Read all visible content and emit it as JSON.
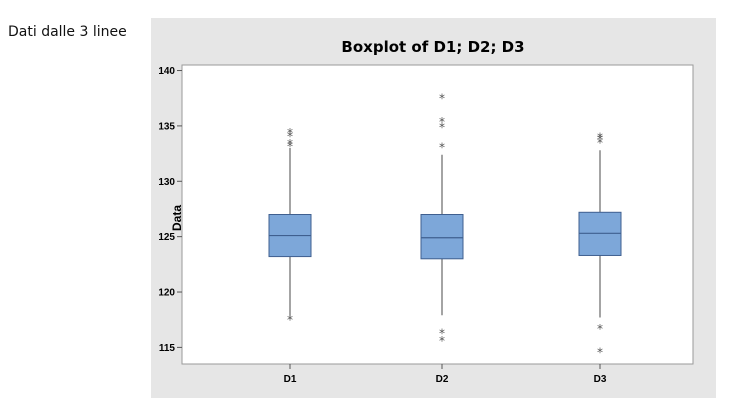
{
  "caption": "Dati dalle 3 linee",
  "colors": {
    "panel_background": "#e6e6e6",
    "plot_background": "#ffffff",
    "box_fill": "#7da7d9",
    "box_stroke": "#3f5f8f",
    "whisker": "#4a4a4a",
    "outlier": "#555555"
  },
  "chart_data": {
    "type": "boxplot",
    "title": "Boxplot of D1; D2; D3",
    "xlabel": "",
    "ylabel": "Data",
    "ylim": [
      113.5,
      140.5
    ],
    "yticks": [
      115,
      120,
      125,
      130,
      135,
      140
    ],
    "grid": false,
    "legend": "none",
    "outlier_marker": "asterisk",
    "categories": [
      "D1",
      "D2",
      "D3"
    ],
    "boxes": [
      {
        "name": "D1",
        "whisker_low": 117.6,
        "q1": 123.2,
        "median": 125.1,
        "q3": 127.0,
        "whisker_high": 133.0,
        "outliers": [
          117.5,
          133.2,
          133.4,
          134.1,
          134.4
        ]
      },
      {
        "name": "D2",
        "whisker_low": 117.9,
        "q1": 123.0,
        "median": 124.9,
        "q3": 127.0,
        "whisker_high": 132.4,
        "outliers": [
          115.6,
          116.3,
          133.1,
          134.9,
          135.4,
          137.5
        ]
      },
      {
        "name": "D3",
        "whisker_low": 117.7,
        "q1": 123.3,
        "median": 125.3,
        "q3": 127.2,
        "whisker_high": 132.8,
        "outliers": [
          114.6,
          116.7,
          133.5,
          133.8,
          134.0
        ]
      }
    ]
  }
}
